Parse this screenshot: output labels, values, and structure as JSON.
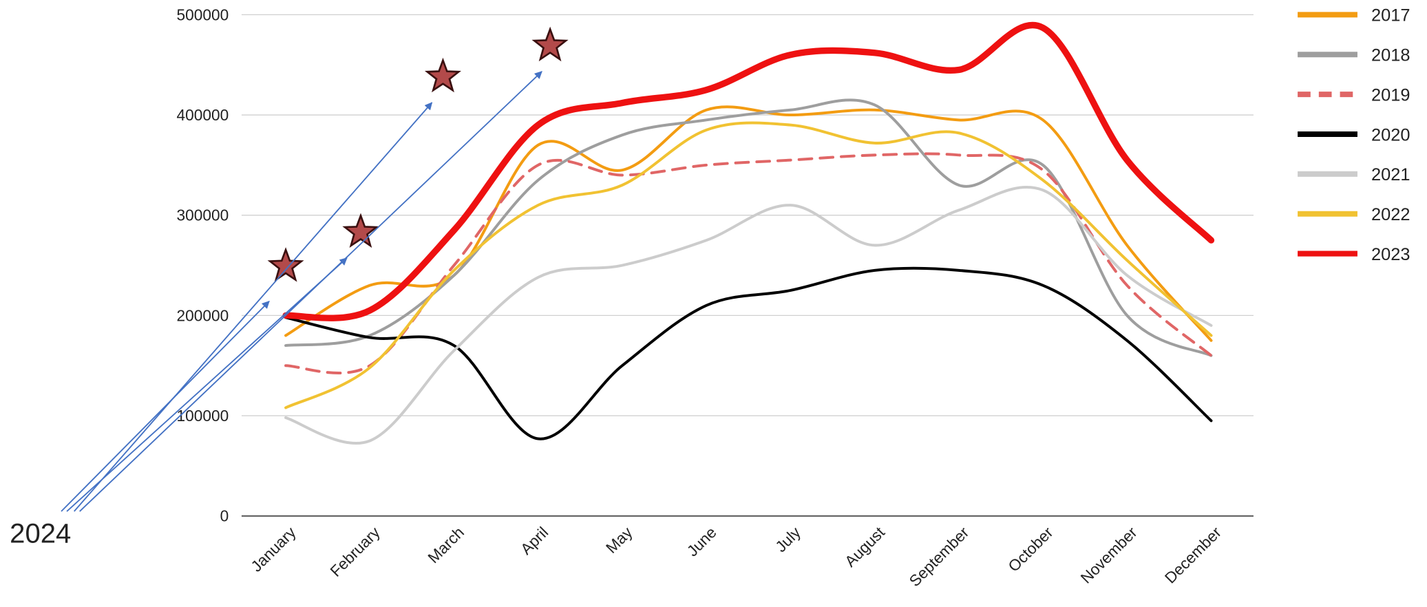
{
  "chart_data": {
    "type": "line",
    "categories": [
      "January",
      "February",
      "March",
      "April",
      "May",
      "June",
      "July",
      "August",
      "September",
      "October",
      "November",
      "December"
    ],
    "series": [
      {
        "name": "2017",
        "color": "#f39c12",
        "values": [
          180000,
          230000,
          240000,
          370000,
          345000,
          405000,
          400000,
          405000,
          395000,
          395000,
          270000,
          175000
        ]
      },
      {
        "name": "2018",
        "color": "#9e9e9e",
        "values": [
          170000,
          180000,
          240000,
          335000,
          380000,
          395000,
          405000,
          410000,
          330000,
          350000,
          200000,
          160000
        ]
      },
      {
        "name": "2019",
        "color": "#e06666",
        "dashed": true,
        "values": [
          150000,
          150000,
          250000,
          350000,
          340000,
          350000,
          355000,
          360000,
          360000,
          345000,
          230000,
          160000
        ]
      },
      {
        "name": "2020",
        "color": "#000000",
        "values": [
          198000,
          178000,
          170000,
          77000,
          150000,
          210000,
          225000,
          245000,
          245000,
          230000,
          175000,
          95000
        ]
      },
      {
        "name": "2021",
        "color": "#cccccc",
        "values": [
          98000,
          75000,
          165000,
          238000,
          250000,
          275000,
          310000,
          270000,
          305000,
          325000,
          240000,
          190000
        ]
      },
      {
        "name": "2022",
        "color": "#f1c232",
        "values": [
          108000,
          148000,
          245000,
          310000,
          330000,
          385000,
          390000,
          372000,
          382000,
          335000,
          255000,
          180000
        ]
      },
      {
        "name": "2023",
        "color": "#ee1111",
        "values": [
          200000,
          205000,
          285000,
          390000,
          412000,
          425000,
          460000,
          462000,
          445000,
          487000,
          355000,
          275000
        ]
      }
    ],
    "annotation": {
      "text": "2024",
      "color": "#b34a4a",
      "values": [
        249000,
        283000,
        438000,
        469000
      ]
    },
    "ylim": [
      0,
      500000
    ],
    "yticks": [
      0,
      100000,
      200000,
      300000,
      400000,
      500000
    ],
    "grid": true,
    "legend": "right"
  }
}
